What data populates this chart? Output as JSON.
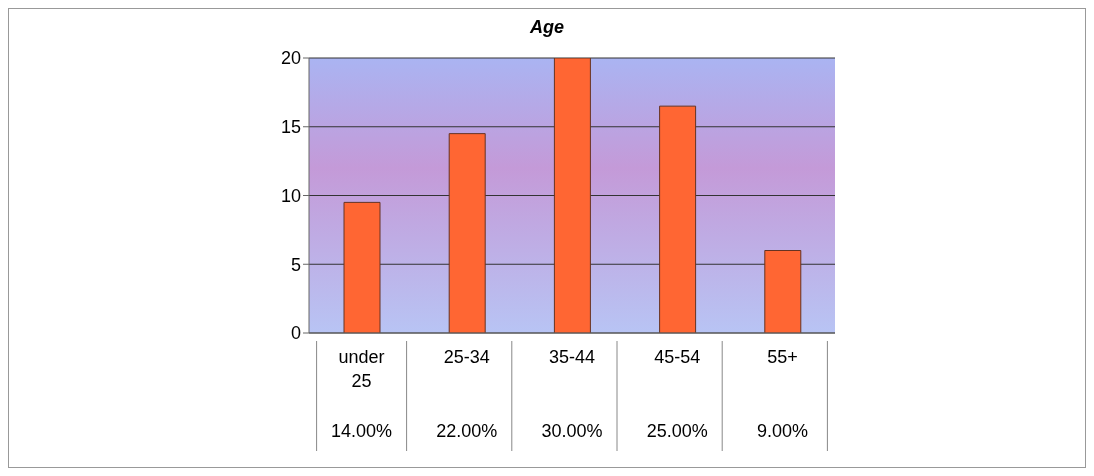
{
  "chart_data": {
    "type": "bar",
    "title": "Age",
    "categories": [
      "under 25",
      "25-34",
      "35-44",
      "45-54",
      "55+"
    ],
    "values": [
      9.5,
      14.5,
      20,
      16.5,
      6
    ],
    "annotations": [
      "14.00%",
      "22.00%",
      "30.00%",
      "25.00%",
      "9.00%"
    ],
    "color": "#ff6633",
    "ylim": [
      0,
      20
    ],
    "yticks": [
      0,
      5,
      10,
      15,
      20
    ],
    "grid": "y"
  }
}
